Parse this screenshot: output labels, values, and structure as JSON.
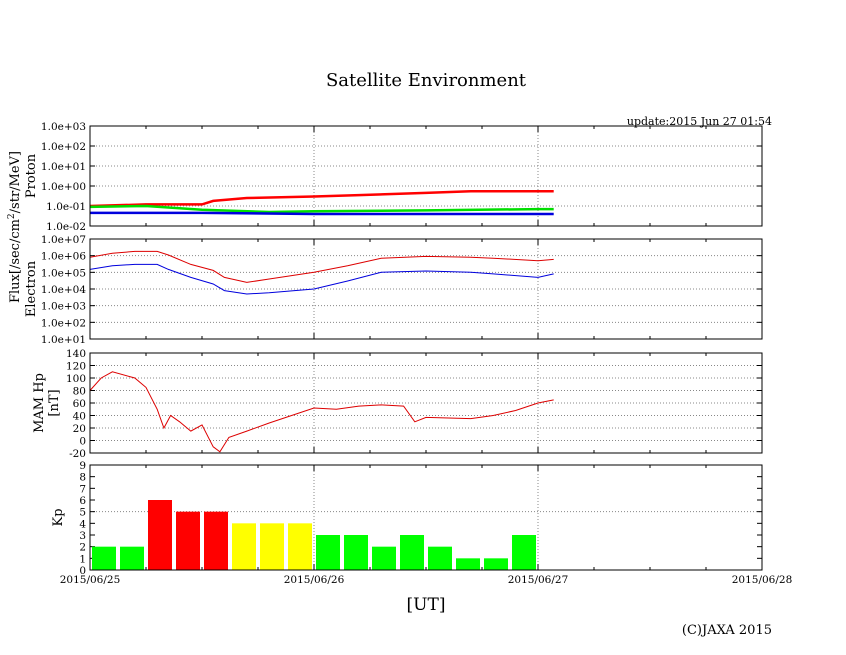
{
  "title": "Satellite Environment",
  "update": "update:2015 Jun 27 01:54",
  "copyright": "(C)JAXA 2015",
  "xlabel": "[UT]",
  "flux_label_parts": [
    "Flux[/sec/cm",
    "2",
    "/str/MeV]"
  ],
  "x_ticks": [
    "2015/06/25",
    "2015/06/26",
    "2015/06/27",
    "2015/06/28"
  ],
  "chart_data": [
    {
      "type": "line",
      "name": "proton",
      "ylabel": "Proton",
      "yscale": "log",
      "ylim": [
        0.01,
        1000
      ],
      "yticks": [
        "1.0e-02",
        "1.0e-01",
        "1.0e+00",
        "1.0e+01",
        "1.0e+02",
        "1.0e+03"
      ],
      "xlim": [
        0,
        3
      ],
      "series": [
        {
          "name": "red",
          "color": "#ff0000",
          "x": [
            0,
            0.25,
            0.5,
            0.55,
            0.7,
            1.0,
            1.2,
            1.5,
            1.7,
            2.0,
            2.07
          ],
          "y": [
            0.1,
            0.12,
            0.12,
            0.18,
            0.25,
            0.3,
            0.35,
            0.45,
            0.55,
            0.55,
            0.55
          ]
        },
        {
          "name": "green",
          "color": "#00dd00",
          "x": [
            0,
            0.25,
            0.5,
            0.8,
            1.0,
            1.5,
            2.0,
            2.07
          ],
          "y": [
            0.09,
            0.1,
            0.065,
            0.05,
            0.055,
            0.06,
            0.07,
            0.07
          ]
        },
        {
          "name": "blue",
          "color": "#0000dd",
          "x": [
            0,
            0.5,
            1.0,
            1.5,
            2.0,
            2.07
          ],
          "y": [
            0.045,
            0.045,
            0.04,
            0.04,
            0.04,
            0.04
          ]
        }
      ]
    },
    {
      "type": "line",
      "name": "electron",
      "ylabel": "Electron",
      "yscale": "log",
      "ylim": [
        10,
        10000000
      ],
      "yticks": [
        "1.0e+01",
        "1.0e+02",
        "1.0e+03",
        "1.0e+04",
        "1.0e+05",
        "1.0e+06",
        "1.0e+07"
      ],
      "xlim": [
        0,
        3
      ],
      "series": [
        {
          "name": "red",
          "color": "#dd0000",
          "x": [
            0,
            0.1,
            0.2,
            0.3,
            0.35,
            0.45,
            0.55,
            0.6,
            0.7,
            0.8,
            1.0,
            1.15,
            1.3,
            1.5,
            1.7,
            1.8,
            2.0,
            2.07
          ],
          "y": [
            800000,
            1400000,
            1800000,
            1800000,
            1100000,
            300000,
            130000,
            50000,
            25000,
            40000,
            100000,
            250000,
            700000,
            900000,
            800000,
            700000,
            500000,
            600000
          ]
        },
        {
          "name": "blue",
          "color": "#0000dd",
          "x": [
            0,
            0.1,
            0.2,
            0.3,
            0.35,
            0.45,
            0.55,
            0.6,
            0.7,
            0.8,
            1.0,
            1.15,
            1.3,
            1.5,
            1.7,
            1.8,
            2.0,
            2.07
          ],
          "y": [
            150000,
            250000,
            300000,
            300000,
            150000,
            50000,
            20000,
            8000,
            5000,
            6000,
            10000,
            30000,
            100000,
            120000,
            100000,
            80000,
            50000,
            80000
          ]
        }
      ]
    },
    {
      "type": "line",
      "name": "mam_hp",
      "ylabel": [
        "MAM Hp",
        "[nT]"
      ],
      "ylim": [
        -20,
        140
      ],
      "yticks": [
        -20,
        0,
        20,
        40,
        60,
        80,
        100,
        120,
        140
      ],
      "xlim": [
        0,
        3
      ],
      "series": [
        {
          "name": "Hp",
          "color": "#dd0000",
          "x": [
            0,
            0.05,
            0.1,
            0.2,
            0.25,
            0.3,
            0.33,
            0.36,
            0.4,
            0.45,
            0.5,
            0.55,
            0.58,
            0.62,
            0.7,
            0.8,
            0.9,
            1.0,
            1.1,
            1.2,
            1.3,
            1.4,
            1.45,
            1.5,
            1.6,
            1.7,
            1.8,
            1.9,
            2.0,
            2.07
          ],
          "y": [
            80,
            100,
            110,
            100,
            85,
            50,
            20,
            40,
            30,
            15,
            25,
            -10,
            -18,
            5,
            15,
            28,
            40,
            52,
            50,
            55,
            57,
            55,
            30,
            37,
            36,
            35,
            40,
            48,
            60,
            65
          ]
        }
      ]
    },
    {
      "type": "bar",
      "name": "kp",
      "ylabel": "Kp",
      "ylim": [
        0,
        9
      ],
      "yticks": [
        0,
        1,
        2,
        3,
        4,
        5,
        6,
        7,
        8,
        9
      ],
      "xlim": [
        0,
        3
      ],
      "bar_width_days": 0.125,
      "colors": {
        "low": "#00ff00",
        "mid": "#ffff00",
        "high": "#ff0000"
      },
      "values": [
        2,
        2,
        6,
        5,
        5,
        4,
        4,
        4,
        3,
        3,
        2,
        3,
        2,
        1,
        1,
        3
      ]
    }
  ]
}
